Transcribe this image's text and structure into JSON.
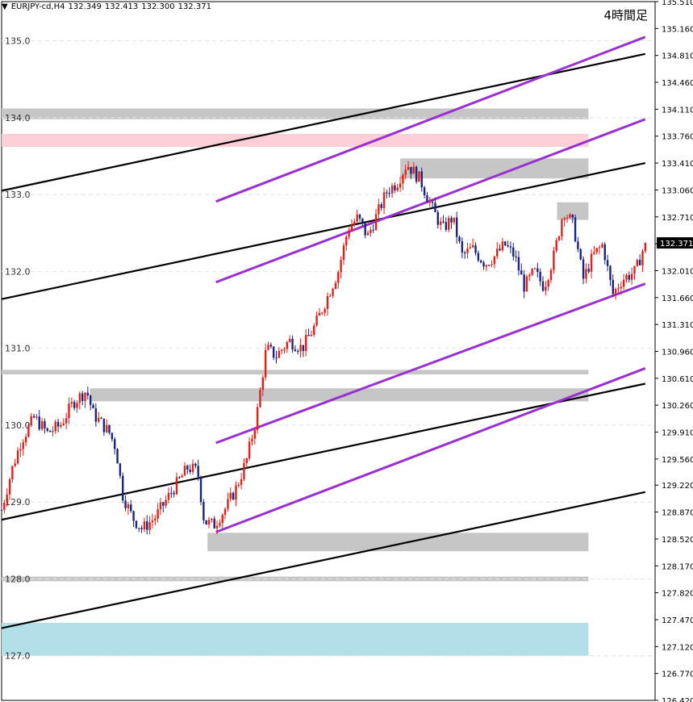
{
  "header": {
    "symbol": "EURJPY-cd,H4",
    "open": "132.349",
    "high": "132.413",
    "low": "132.300",
    "close": "132.371",
    "timeframe_label": "4時間足"
  },
  "colors": {
    "background": "#ffffff",
    "bull_candle": "#e0201a",
    "bear_candle": "#1a237e",
    "grey_zone": "#c6c6c6",
    "pink_zone": "#ffcfd8",
    "blue_zone": "#b3e0e8",
    "purple_channel": "#9b30d0",
    "black_channel": "#000000",
    "current_price_bg": "#000000",
    "current_price_fg": "#ffffff"
  },
  "chart_data": {
    "type": "candlestick",
    "ylim": [
      126.42,
      135.51
    ],
    "right_axis_ticks": [
      "135.510",
      "135.160",
      "134.810",
      "134.460",
      "134.110",
      "133.760",
      "133.410",
      "133.060",
      "132.710",
      "132.360",
      "132.010",
      "131.660",
      "131.310",
      "130.960",
      "130.610",
      "130.260",
      "129.910",
      "129.560",
      "129.220",
      "128.870",
      "128.520",
      "128.170",
      "127.820",
      "127.470",
      "127.120",
      "126.770",
      "126.420"
    ],
    "grid_levels": [
      "135.0",
      "134.0",
      "133.0",
      "132.0",
      "131.0",
      "130.0",
      "129.0",
      "128.0",
      "127.0"
    ],
    "current_price": "132.371",
    "zones": [
      {
        "kind": "grey",
        "from": 133.98,
        "to": 134.12,
        "start": 0.0
      },
      {
        "kind": "pink",
        "from": 133.62,
        "to": 133.79,
        "start": 0.0
      },
      {
        "kind": "grey",
        "from": 133.21,
        "to": 133.47,
        "start": 0.61
      },
      {
        "kind": "grey",
        "from": 132.67,
        "to": 132.9,
        "start": 0.85
      },
      {
        "kind": "grey",
        "from": 130.66,
        "to": 130.72,
        "start": 0.0
      },
      {
        "kind": "grey",
        "from": 130.31,
        "to": 130.48,
        "start": 0.135
      },
      {
        "kind": "grey",
        "from": 128.36,
        "to": 128.6,
        "start": 0.315
      },
      {
        "kind": "grey",
        "from": 127.97,
        "to": 128.03,
        "start": 0.0
      },
      {
        "kind": "blue",
        "from": 127.0,
        "to": 127.43,
        "start": 0.0
      }
    ],
    "channels": [
      {
        "color": "black",
        "x1": 0.0,
        "y1": 133.05,
        "x2": 0.985,
        "y2": 134.83
      },
      {
        "color": "black",
        "x1": 0.0,
        "y1": 131.64,
        "x2": 0.985,
        "y2": 133.41
      },
      {
        "color": "black",
        "x1": 0.0,
        "y1": 128.77,
        "x2": 0.985,
        "y2": 130.54
      },
      {
        "color": "black",
        "x1": 0.0,
        "y1": 127.36,
        "x2": 0.985,
        "y2": 129.13
      },
      {
        "color": "purple",
        "x1": 0.328,
        "y1": 132.91,
        "x2": 0.985,
        "y2": 135.05
      },
      {
        "color": "purple",
        "x1": 0.328,
        "y1": 131.86,
        "x2": 0.985,
        "y2": 133.98
      },
      {
        "color": "purple",
        "x1": 0.328,
        "y1": 129.77,
        "x2": 0.985,
        "y2": 131.84
      },
      {
        "color": "purple",
        "x1": 0.328,
        "y1": 128.61,
        "x2": 0.985,
        "y2": 130.74
      }
    ],
    "path": [
      [
        0.0,
        128.9
      ],
      [
        0.015,
        129.4
      ],
      [
        0.03,
        129.8
      ],
      [
        0.05,
        130.1
      ],
      [
        0.07,
        129.9
      ],
      [
        0.09,
        130.0
      ],
      [
        0.11,
        130.3
      ],
      [
        0.13,
        130.45
      ],
      [
        0.14,
        130.15
      ],
      [
        0.165,
        129.9
      ],
      [
        0.175,
        129.7
      ],
      [
        0.185,
        129.1
      ],
      [
        0.2,
        128.8
      ],
      [
        0.215,
        128.65
      ],
      [
        0.235,
        128.8
      ],
      [
        0.25,
        129.0
      ],
      [
        0.265,
        129.2
      ],
      [
        0.285,
        129.45
      ],
      [
        0.3,
        129.4
      ],
      [
        0.31,
        128.75
      ],
      [
        0.325,
        128.7
      ],
      [
        0.345,
        128.95
      ],
      [
        0.36,
        129.2
      ],
      [
        0.375,
        129.55
      ],
      [
        0.39,
        130.1
      ],
      [
        0.405,
        131.0
      ],
      [
        0.42,
        130.9
      ],
      [
        0.44,
        131.1
      ],
      [
        0.46,
        131.0
      ],
      [
        0.48,
        131.3
      ],
      [
        0.5,
        131.7
      ],
      [
        0.515,
        132.0
      ],
      [
        0.53,
        132.55
      ],
      [
        0.545,
        132.7
      ],
      [
        0.56,
        132.45
      ],
      [
        0.575,
        132.75
      ],
      [
        0.59,
        133.05
      ],
      [
        0.605,
        133.15
      ],
      [
        0.62,
        133.4
      ],
      [
        0.64,
        133.2
      ],
      [
        0.66,
        132.8
      ],
      [
        0.675,
        132.55
      ],
      [
        0.69,
        132.7
      ],
      [
        0.705,
        132.2
      ],
      [
        0.72,
        132.3
      ],
      [
        0.74,
        132.1
      ],
      [
        0.755,
        132.2
      ],
      [
        0.77,
        132.35
      ],
      [
        0.785,
        132.2
      ],
      [
        0.8,
        131.8
      ],
      [
        0.815,
        132.0
      ],
      [
        0.83,
        131.8
      ],
      [
        0.845,
        132.2
      ],
      [
        0.86,
        132.8
      ],
      [
        0.875,
        132.6
      ],
      [
        0.89,
        131.9
      ],
      [
        0.905,
        132.2
      ],
      [
        0.92,
        132.35
      ],
      [
        0.935,
        131.7
      ],
      [
        0.95,
        131.9
      ],
      [
        0.97,
        132.0
      ],
      [
        0.985,
        132.37
      ]
    ]
  }
}
